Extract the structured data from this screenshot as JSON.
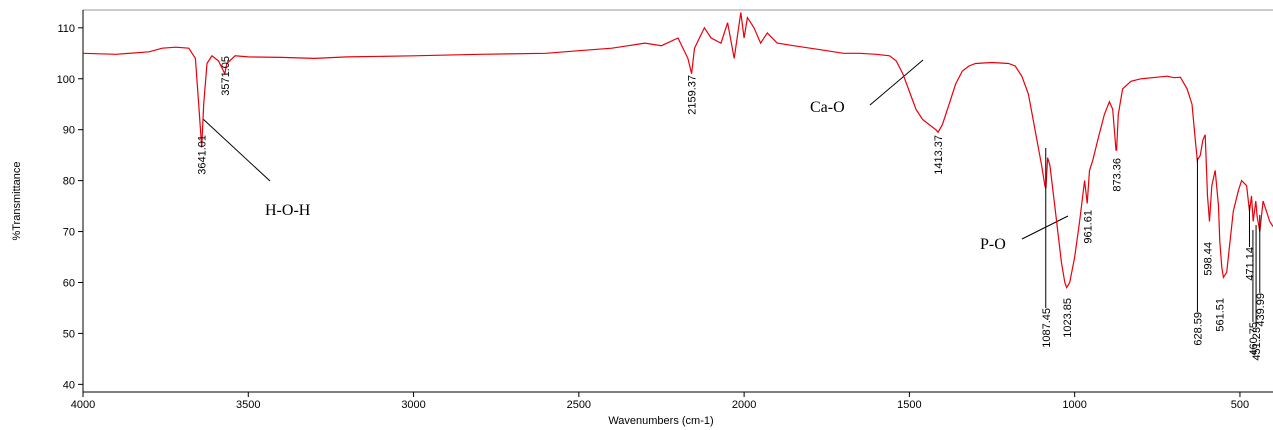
{
  "chart_data": {
    "type": "line",
    "xlabel": "Wavenumbers (cm-1)",
    "ylabel": "%Transmittance",
    "xlim": [
      4000,
      400
    ],
    "ylim": [
      38.5,
      113.5
    ],
    "xticks": [
      4000,
      3500,
      3000,
      2500,
      2000,
      1500,
      1000,
      500
    ],
    "yticks": [
      40,
      50,
      60,
      70,
      80,
      90,
      100,
      110
    ],
    "x": [
      4000,
      3900,
      3800,
      3760,
      3720,
      3680,
      3660,
      3650,
      3641,
      3635,
      3625,
      3610,
      3590,
      3575,
      3571,
      3565,
      3540,
      3500,
      3400,
      3300,
      3200,
      3000,
      2800,
      2600,
      2500,
      2400,
      2350,
      2300,
      2250,
      2200,
      2170,
      2159,
      2150,
      2120,
      2100,
      2070,
      2050,
      2030,
      2010,
      2000,
      1990,
      1970,
      1950,
      1930,
      1900,
      1850,
      1800,
      1750,
      1700,
      1650,
      1600,
      1560,
      1540,
      1520,
      1500,
      1480,
      1460,
      1440,
      1420,
      1413,
      1400,
      1380,
      1360,
      1340,
      1320,
      1300,
      1250,
      1200,
      1180,
      1160,
      1140,
      1120,
      1100,
      1090,
      1087,
      1082,
      1075,
      1060,
      1040,
      1030,
      1024,
      1015,
      1000,
      985,
      970,
      962,
      955,
      945,
      930,
      910,
      895,
      885,
      875,
      873,
      868,
      855,
      830,
      800,
      750,
      720,
      700,
      680,
      660,
      645,
      635,
      629,
      620,
      612,
      605,
      598,
      592,
      585,
      575,
      565,
      561,
      555,
      550,
      540,
      530,
      520,
      505,
      495,
      480,
      471,
      465,
      460,
      452,
      448,
      440,
      430,
      420,
      410,
      400
    ],
    "series": [
      {
        "color": "#e8000b",
        "values": [
          105,
          104.8,
          105.3,
          106,
          106.2,
          106,
          104,
          95,
          86.5,
          95,
          103,
          104.5,
          103.5,
          101.5,
          101,
          103,
          104.5,
          104.3,
          104.2,
          104,
          104.3,
          104.5,
          104.8,
          105,
          105.5,
          106,
          106.5,
          107,
          106.5,
          108,
          104,
          101,
          106,
          110,
          108,
          107,
          111,
          104,
          113,
          108,
          112,
          110,
          107,
          109,
          107,
          106.5,
          106,
          105.5,
          105,
          105,
          104.8,
          104.5,
          103.5,
          101,
          97.5,
          94,
          92,
          91,
          90,
          89.5,
          91,
          95,
          99,
          101.5,
          102.5,
          103,
          103.2,
          103,
          102.5,
          100.5,
          97,
          90,
          83,
          79,
          78.5,
          84.5,
          83,
          75,
          64,
          60,
          59,
          60,
          65,
          72,
          80,
          75.5,
          82,
          84,
          88,
          93,
          95.5,
          94,
          86,
          86,
          93,
          98,
          99.5,
          100,
          100.3,
          100.5,
          100.2,
          100.3,
          98,
          95,
          88,
          84,
          85,
          88,
          89,
          77,
          72,
          79,
          82,
          75,
          68,
          63,
          61,
          62,
          68,
          74,
          78,
          80,
          79,
          74,
          77,
          72,
          76,
          73,
          70,
          76,
          74,
          72,
          71
        ]
      }
    ],
    "peaks": [
      3641.01,
      3571.05,
      2159.37,
      1413.37,
      1087.45,
      1023.85,
      961.61,
      873.36,
      628.59,
      598.44,
      561.51,
      471.14,
      460.75,
      439.99,
      451.23
    ],
    "annotations": [
      "H-O-H",
      "Ca-O",
      "P-O"
    ]
  }
}
